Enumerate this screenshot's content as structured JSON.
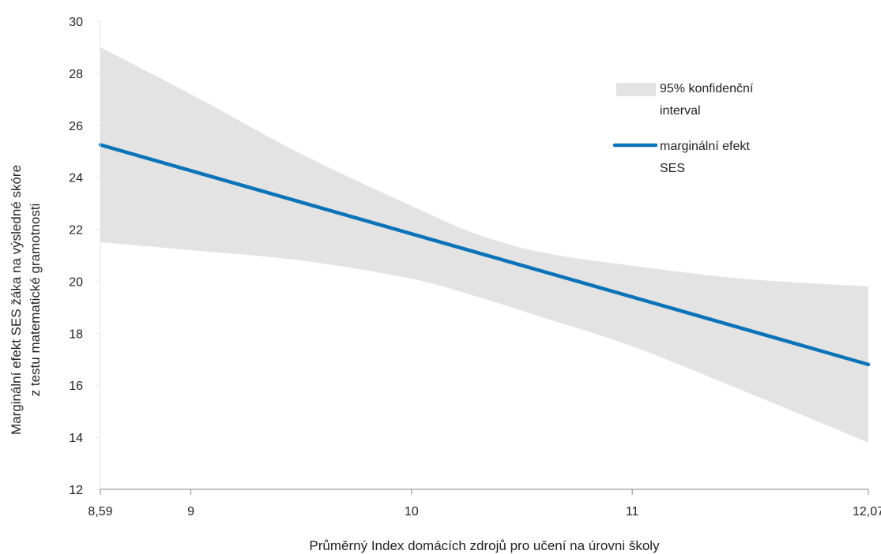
{
  "chart_data": {
    "type": "line",
    "xlabel": "Průměrný Index domácích zdrojů pro učení na úrovni školy",
    "ylabel_lines": [
      "Marginální efekt SES žáka na výsledné skóre",
      "z testu matematické gramotnosti"
    ],
    "xlim": [
      8.59,
      12.07
    ],
    "ylim": [
      12,
      30
    ],
    "x_ticks": [
      {
        "value": 8.59,
        "label": "8,59"
      },
      {
        "value": 9,
        "label": "9"
      },
      {
        "value": 10,
        "label": "10"
      },
      {
        "value": 11,
        "label": "11"
      },
      {
        "value": 12.07,
        "label": "12,07"
      }
    ],
    "y_ticks": [
      {
        "value": 12,
        "label": "12"
      },
      {
        "value": 14,
        "label": "14"
      },
      {
        "value": 16,
        "label": "16"
      },
      {
        "value": 18,
        "label": "18"
      },
      {
        "value": 20,
        "label": "20"
      },
      {
        "value": 22,
        "label": "22"
      },
      {
        "value": 24,
        "label": "24"
      },
      {
        "value": 26,
        "label": "26"
      },
      {
        "value": 28,
        "label": "28"
      },
      {
        "value": 30,
        "label": "30"
      }
    ],
    "grid": false,
    "legend_position": "top-right",
    "series": [
      {
        "name_lines": [
          "95% konfidenční",
          "interval"
        ],
        "kind": "band",
        "color": "#e3e3e3",
        "x": [
          8.59,
          9.0,
          9.5,
          10.0,
          10.3,
          10.6,
          11.0,
          11.5,
          12.07
        ],
        "lower": [
          21.5,
          21.2,
          20.8,
          20.1,
          19.4,
          18.6,
          17.5,
          15.8,
          13.8
        ],
        "upper": [
          29.0,
          27.2,
          24.9,
          22.9,
          21.8,
          21.1,
          20.6,
          20.1,
          19.8
        ]
      },
      {
        "name_lines": [
          "marginální efekt",
          "SES"
        ],
        "kind": "line",
        "color": "#0a73b8",
        "x": [
          8.59,
          12.07
        ],
        "y": [
          25.25,
          16.8
        ]
      }
    ]
  }
}
